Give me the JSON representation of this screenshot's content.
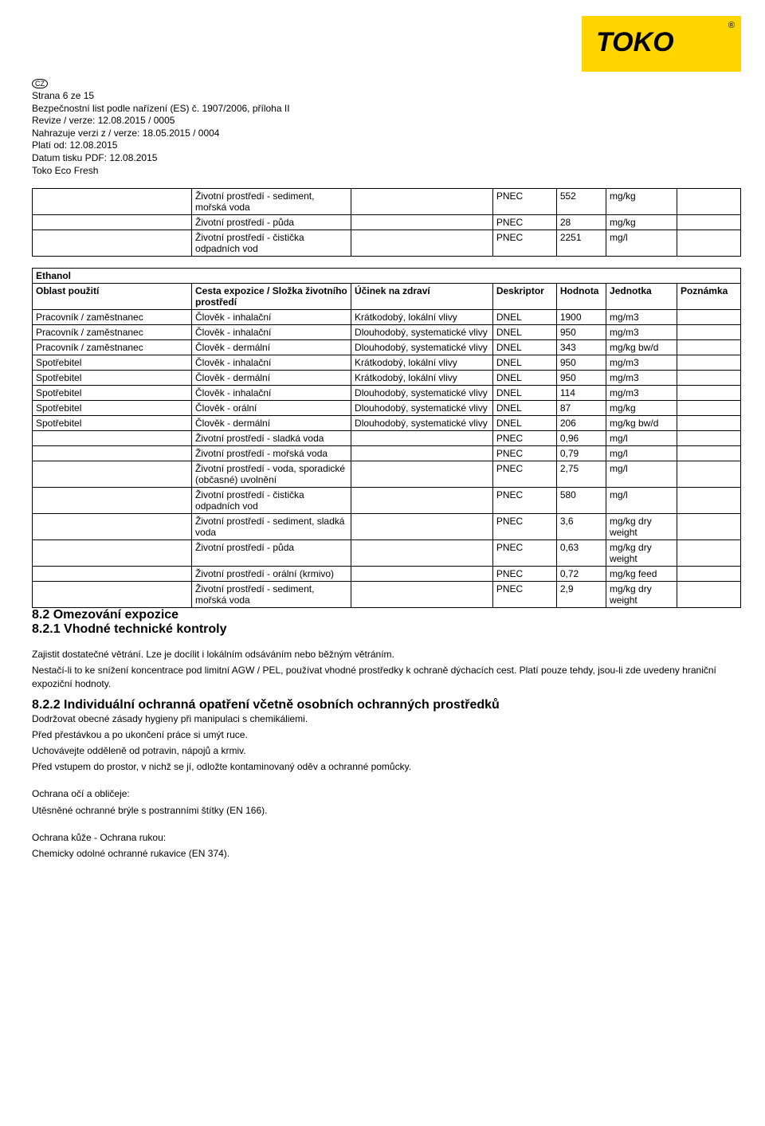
{
  "logo": {
    "text": "TOKO",
    "reg": "®"
  },
  "badge": "CZ",
  "header": {
    "l1": "Strana 6 ze 15",
    "l2": "Bezpečnostní list podle nařízení (ES) č. 1907/2006, příloha II",
    "l3": "Revize / verze: 12.08.2015 / 0005",
    "l4": "Nahrazuje verzi z / verze: 18.05.2015 / 0004",
    "l5": "Platí od: 12.08.2015",
    "l6": "Datum tisku PDF: 12.08.2015",
    "l7": "Toko Eco Fresh"
  },
  "tbl1": {
    "rows": [
      {
        "c1": "",
        "c2": "Životní prostředí - sediment, mořská voda",
        "c3": "",
        "c4": "PNEC",
        "c5": "552",
        "c6": "mg/kg",
        "c7": ""
      },
      {
        "c1": "",
        "c2": "Životní prostředí - půda",
        "c3": "",
        "c4": "PNEC",
        "c5": "28",
        "c6": "mg/kg",
        "c7": ""
      },
      {
        "c1": "",
        "c2": "Životní prostředí - čistička odpadních vod",
        "c3": "",
        "c4": "PNEC",
        "c5": "2251",
        "c6": "mg/l",
        "c7": ""
      }
    ]
  },
  "tbl2": {
    "substance": "Ethanol",
    "head": {
      "c1": "Oblast použití",
      "c2": "Cesta expozice / Složka životního prostředí",
      "c3": "Účinek na zdraví",
      "c4": "Deskriptor",
      "c5": "Hodnota",
      "c6": "Jednotka",
      "c7": "Poznámka"
    },
    "rows": [
      {
        "c1": "Pracovník / zaměstnanec",
        "c2": "Člověk - inhalační",
        "c3": "Krátkodobý, lokální vlivy",
        "c4": "DNEL",
        "c5": "1900",
        "c6": "mg/m3",
        "c7": ""
      },
      {
        "c1": "Pracovník / zaměstnanec",
        "c2": "Člověk - inhalační",
        "c3": "Dlouhodobý, systematické vlivy",
        "c4": "DNEL",
        "c5": "950",
        "c6": "mg/m3",
        "c7": ""
      },
      {
        "c1": "Pracovník / zaměstnanec",
        "c2": "Člověk - dermální",
        "c3": "Dlouhodobý, systematické vlivy",
        "c4": "DNEL",
        "c5": "343",
        "c6": "mg/kg bw/d",
        "c7": ""
      },
      {
        "c1": "Spotřebitel",
        "c2": "Člověk - inhalační",
        "c3": "Krátkodobý, lokální vlivy",
        "c4": "DNEL",
        "c5": "950",
        "c6": "mg/m3",
        "c7": ""
      },
      {
        "c1": "Spotřebitel",
        "c2": "Člověk - dermální",
        "c3": "Krátkodobý, lokální vlivy",
        "c4": "DNEL",
        "c5": "950",
        "c6": "mg/m3",
        "c7": ""
      },
      {
        "c1": "Spotřebitel",
        "c2": "Člověk - inhalační",
        "c3": "Dlouhodobý, systematické vlivy",
        "c4": "DNEL",
        "c5": "114",
        "c6": "mg/m3",
        "c7": ""
      },
      {
        "c1": "Spotřebitel",
        "c2": "Člověk - orální",
        "c3": "Dlouhodobý, systematické vlivy",
        "c4": "DNEL",
        "c5": "87",
        "c6": "mg/kg",
        "c7": ""
      },
      {
        "c1": "Spotřebitel",
        "c2": "Člověk - dermální",
        "c3": "Dlouhodobý, systematické vlivy",
        "c4": "DNEL",
        "c5": "206",
        "c6": "mg/kg bw/d",
        "c7": ""
      },
      {
        "c1": "",
        "c2": "Životní prostředí - sladká voda",
        "c3": "",
        "c4": "PNEC",
        "c5": "0,96",
        "c6": "mg/l",
        "c7": ""
      },
      {
        "c1": "",
        "c2": "Životní prostředí - mořská voda",
        "c3": "",
        "c4": "PNEC",
        "c5": "0,79",
        "c6": "mg/l",
        "c7": ""
      },
      {
        "c1": "",
        "c2": "Životní prostředí - voda, sporadické (občasné) uvolnění",
        "c3": "",
        "c4": "PNEC",
        "c5": "2,75",
        "c6": "mg/l",
        "c7": ""
      },
      {
        "c1": "",
        "c2": "Životní prostředí - čistička odpadních vod",
        "c3": "",
        "c4": "PNEC",
        "c5": "580",
        "c6": "mg/l",
        "c7": ""
      },
      {
        "c1": "",
        "c2": "Životní prostředí - sediment, sladká voda",
        "c3": "",
        "c4": "PNEC",
        "c5": "3,6",
        "c6": "mg/kg dry weight",
        "c7": ""
      },
      {
        "c1": "",
        "c2": "Životní prostředí - půda",
        "c3": "",
        "c4": "PNEC",
        "c5": "0,63",
        "c6": "mg/kg dry weight",
        "c7": ""
      },
      {
        "c1": "",
        "c2": "Životní prostředí - orální (krmivo)",
        "c3": "",
        "c4": "PNEC",
        "c5": "0,72",
        "c6": "mg/kg feed",
        "c7": ""
      },
      {
        "c1": "",
        "c2": "Životní prostředí - sediment, mořská voda",
        "c3": "",
        "c4": "PNEC",
        "c5": "2,9",
        "c6": "mg/kg dry weight",
        "c7": ""
      }
    ]
  },
  "sections": {
    "s82": "8.2 Omezování expozice",
    "s821": "8.2.1 Vhodné technické kontroly",
    "p821a": " Zajistit dostatečné větrání. Lze je docílit i lokálním odsáváním nebo běžným větráním.",
    "p821b": "Nestačí-li to ke snížení koncentrace pod limitní AGW / PEL, používat vhodné prostředky k ochraně dýchacích cest. Platí pouze tehdy, jsou-li zde uvedeny hraniční expoziční hodnoty.",
    "s822": "8.2.2 Individuální ochranná opatření včetně osobních ochranných prostředků",
    "p822a": "Dodržovat obecné zásady hygieny při manipulaci s chemikáliemi.",
    "p822b": "Před přestávkou a po ukončení práce si umýt ruce.",
    "p822c": "Uchovávejte odděleně od potravin, nápojů a krmiv.",
    "p822d": "Před vstupem do prostor, v nichž se jí, odložte kontaminovaný oděv a ochranné pomůcky.",
    "eyeH": "Ochrana očí a obličeje:",
    "eyeP": "Utěsněné ochranné brýle s postranními štítky (EN 166).",
    "skinH": "Ochrana kůže - Ochrana rukou:",
    "skinP": "Chemicky odolné ochranné rukavice (EN 374)."
  }
}
